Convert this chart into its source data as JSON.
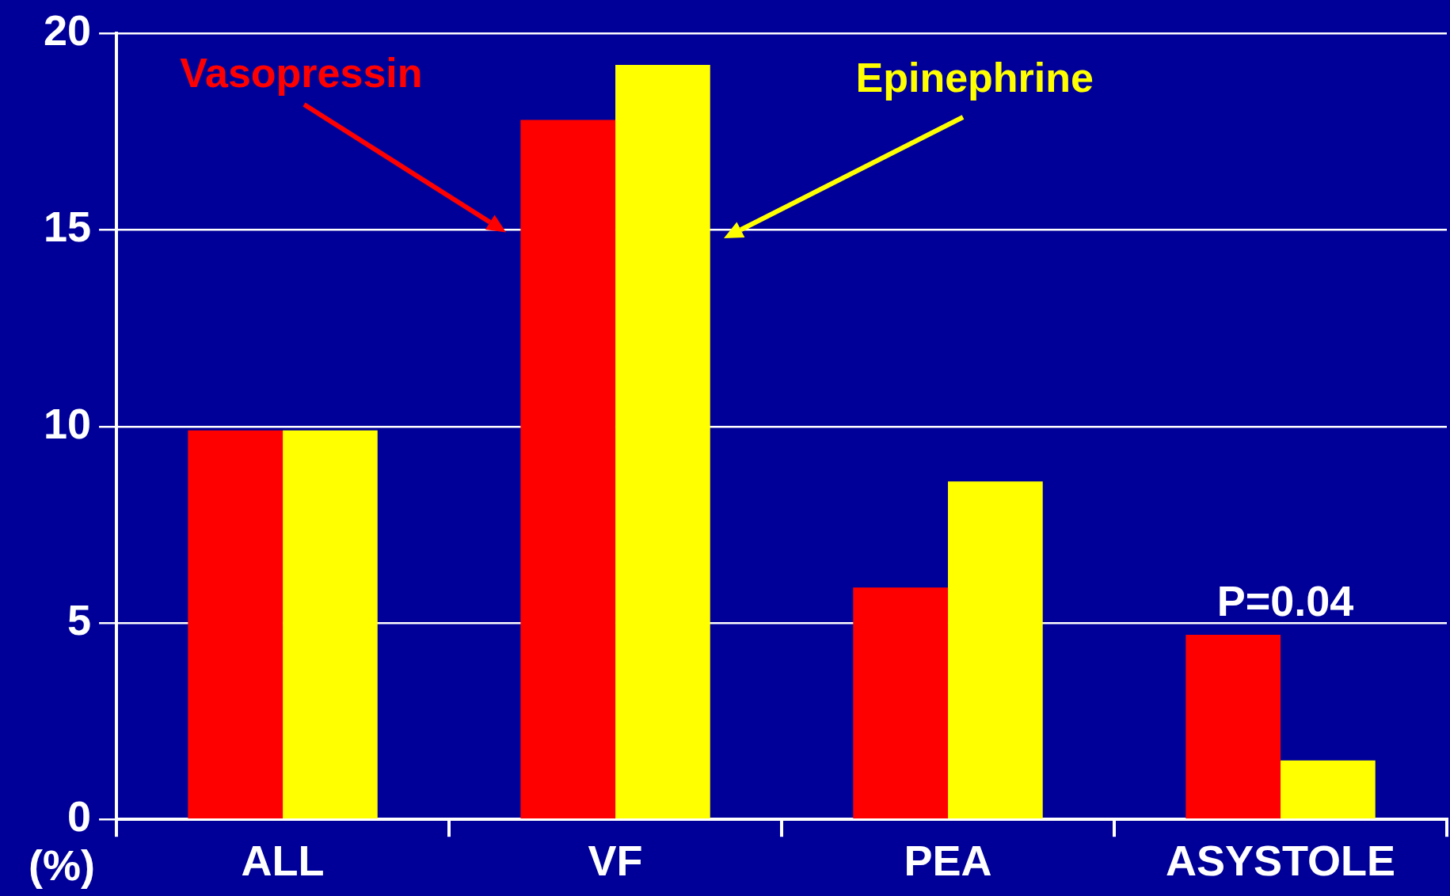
{
  "chart_data": {
    "type": "bar",
    "categories": [
      "ALL",
      "VF",
      "PEA",
      "ASYSTOLE"
    ],
    "series": [
      {
        "name": "Vasopressin",
        "color": "#ff0000",
        "values": [
          9.9,
          17.8,
          5.9,
          4.7
        ]
      },
      {
        "name": "Epinephrine",
        "color": "#ffff00",
        "values": [
          9.9,
          19.2,
          8.6,
          1.5
        ]
      }
    ],
    "ylabel": "(%)",
    "ylim": [
      0,
      20
    ],
    "yticks": [
      0,
      5,
      10,
      15,
      20
    ],
    "grid": "y",
    "legend": false,
    "annotations": [
      "P=0.04"
    ]
  }
}
